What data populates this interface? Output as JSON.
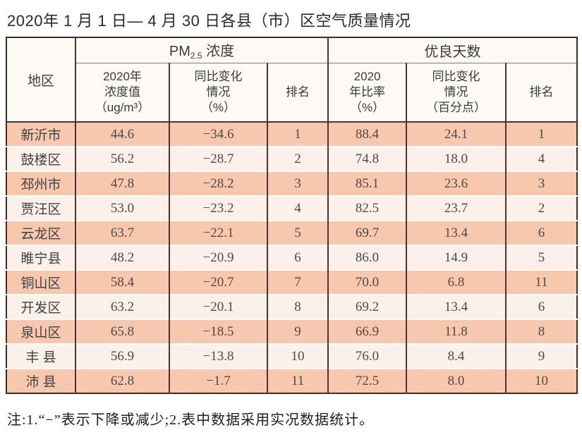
{
  "page_title": "2020年 1 月 1 日— 4 月 30 日各县（市）区空气质量情况",
  "footnote": "注:1.“−”表示下降或减少;2.表中数据采用实况数据统计。",
  "colors": {
    "row_salmon": "#f8c8ae",
    "row_light": "#fbf0ea",
    "header_bg": "#fdfaf5",
    "grid_dark": "#4a362d",
    "text_dark": "#2b2b2b"
  },
  "table": {
    "header": {
      "region": "地区",
      "pm25_group": {
        "prefix": "PM",
        "subscript": "2.5",
        "suffix": " 浓度"
      },
      "good_days_group": "优良天数",
      "sub": {
        "pm_value": "2020年\n浓度值\n（ug/m³）",
        "pm_change": "同比变化\n情况\n（%）",
        "pm_rank": "排名",
        "good_ratio": "2020\n年比率\n（%）",
        "good_change": "同比变化\n情况\n（百分点）",
        "good_rank": "排名"
      }
    },
    "rows": [
      {
        "region": "新沂市",
        "pm_value": "44.6",
        "pm_change": "−34.6",
        "pm_rank": "1",
        "good_ratio": "88.4",
        "good_change": "24.1",
        "good_rank": "1"
      },
      {
        "region": "鼓楼区",
        "pm_value": "56.2",
        "pm_change": "−28.7",
        "pm_rank": "2",
        "good_ratio": "74.8",
        "good_change": "18.0",
        "good_rank": "4"
      },
      {
        "region": "邳州市",
        "pm_value": "47.8",
        "pm_change": "−28.2",
        "pm_rank": "3",
        "good_ratio": "85.1",
        "good_change": "23.6",
        "good_rank": "3"
      },
      {
        "region": "贾汪区",
        "pm_value": "53.0",
        "pm_change": "−23.2",
        "pm_rank": "4",
        "good_ratio": "82.5",
        "good_change": "23.7",
        "good_rank": "2"
      },
      {
        "region": "云龙区",
        "pm_value": "63.7",
        "pm_change": "−22.1",
        "pm_rank": "5",
        "good_ratio": "69.7",
        "good_change": "13.4",
        "good_rank": "6"
      },
      {
        "region": "睢宁县",
        "pm_value": "48.2",
        "pm_change": "−20.9",
        "pm_rank": "6",
        "good_ratio": "86.0",
        "good_change": "14.9",
        "good_rank": "5"
      },
      {
        "region": "铜山区",
        "pm_value": "58.4",
        "pm_change": "−20.7",
        "pm_rank": "7",
        "good_ratio": "70.0",
        "good_change": "6.8",
        "good_rank": "11"
      },
      {
        "region": "开发区",
        "pm_value": "63.2",
        "pm_change": "−20.1",
        "pm_rank": "8",
        "good_ratio": "69.2",
        "good_change": "13.4",
        "good_rank": "6"
      },
      {
        "region": "泉山区",
        "pm_value": "65.8",
        "pm_change": "−18.5",
        "pm_rank": "9",
        "good_ratio": "66.9",
        "good_change": "11.8",
        "good_rank": "8"
      },
      {
        "region": "丰 县",
        "pm_value": "56.9",
        "pm_change": "−13.8",
        "pm_rank": "10",
        "good_ratio": "76.0",
        "good_change": "8.4",
        "good_rank": "9"
      },
      {
        "region": "沛 县",
        "pm_value": "62.8",
        "pm_change": "−1.7",
        "pm_rank": "11",
        "good_ratio": "72.5",
        "good_change": "8.0",
        "good_rank": "10"
      }
    ]
  },
  "chart_data": {
    "type": "table",
    "title": "2020年1月1日—4月30日各县（市）区空气质量情况",
    "column_groups": [
      "PM2.5浓度",
      "优良天数"
    ],
    "columns": [
      "地区",
      "PM2.5 2020年浓度值(ug/m3)",
      "PM2.5 同比变化情况(%)",
      "PM2.5 排名",
      "优良天数 2020年比率(%)",
      "优良天数 同比变化情况(百分点)",
      "优良天数 排名"
    ],
    "rows": [
      [
        "新沂市",
        44.6,
        -34.6,
        1,
        88.4,
        24.1,
        1
      ],
      [
        "鼓楼区",
        56.2,
        -28.7,
        2,
        74.8,
        18.0,
        4
      ],
      [
        "邳州市",
        47.8,
        -28.2,
        3,
        85.1,
        23.6,
        3
      ],
      [
        "贾汪区",
        53.0,
        -23.2,
        4,
        82.5,
        23.7,
        2
      ],
      [
        "云龙区",
        63.7,
        -22.1,
        5,
        69.7,
        13.4,
        6
      ],
      [
        "睢宁县",
        48.2,
        -20.9,
        6,
        86.0,
        14.9,
        5
      ],
      [
        "铜山区",
        58.4,
        -20.7,
        7,
        70.0,
        6.8,
        11
      ],
      [
        "开发区",
        63.2,
        -20.1,
        8,
        69.2,
        13.4,
        6
      ],
      [
        "泉山区",
        65.8,
        -18.5,
        9,
        66.9,
        11.8,
        8
      ],
      [
        "丰县",
        56.9,
        -13.8,
        10,
        76.0,
        8.4,
        9
      ],
      [
        "沛县",
        62.8,
        -1.7,
        11,
        72.5,
        8.0,
        10
      ]
    ],
    "footnote": "注:1.“−”表示下降或减少;2.表中数据采用实况数据统计。"
  }
}
